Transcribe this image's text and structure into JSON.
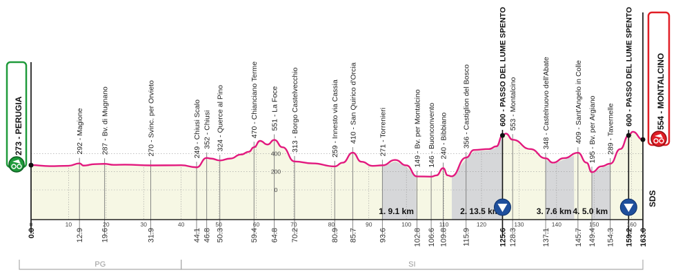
{
  "chart_data": {
    "type": "area",
    "title": "",
    "xlabel": "",
    "ylabel": "",
    "xlim": [
      0,
      163
    ],
    "x_ticks": [
      0,
      10,
      20,
      30,
      40,
      50,
      60,
      70,
      80,
      90,
      100,
      110,
      120,
      130,
      140,
      150,
      160
    ],
    "y_gridlines": [
      0,
      200,
      400
    ],
    "grid": true,
    "colors": {
      "profile": "#e2197e",
      "fill": "#f6f7e4",
      "gravel": "#d6d7d9",
      "start": "#1e9a3a",
      "finish": "#e11d25",
      "kom": "#1f4f9c"
    },
    "profile": {
      "km": [
        0,
        5,
        10,
        12.9,
        14,
        17,
        19.6,
        22,
        25,
        31.9,
        40,
        44.1,
        46.8,
        48,
        50.3,
        53,
        56,
        58,
        59.4,
        61,
        63,
        64.8,
        67,
        70.2,
        75,
        80.9,
        83,
        85.7,
        88,
        91,
        93.6,
        97,
        100,
        102.8,
        106.6,
        108,
        109.8,
        111,
        112,
        115.9,
        118,
        122,
        124,
        125.6,
        126.5,
        128.3,
        133,
        137.1,
        139,
        142,
        145.7,
        148,
        149.4,
        152,
        154.3,
        157,
        159.2,
        160.3,
        163
      ],
      "elevation_m": [
        273,
        262,
        266,
        292,
        268,
        284,
        287,
        276,
        278,
        270,
        272,
        249,
        352,
        345,
        324,
        345,
        390,
        420,
        470,
        540,
        500,
        551,
        470,
        313,
        292,
        259,
        300,
        410,
        310,
        265,
        271,
        330,
        270,
        149,
        146,
        160,
        240,
        160,
        150,
        356,
        440,
        450,
        480,
        600,
        620,
        553,
        450,
        348,
        300,
        350,
        409,
        300,
        195,
        260,
        289,
        450,
        600,
        640,
        554
      ]
    },
    "start": {
      "label": "273 - PERUGIA",
      "km": 0,
      "elevation_m": 273
    },
    "finish": {
      "label": "554 - MONTALCINO",
      "km": 163,
      "elevation_m": 554
    },
    "waypoints": [
      {
        "km": 12.9,
        "km_label": "12.9",
        "label": "292 - Magione",
        "bold": false
      },
      {
        "km": 19.6,
        "km_label": "19.6",
        "label": "287 - Bv. di Mugnano",
        "bold": false
      },
      {
        "km": 31.9,
        "km_label": "31.9",
        "label": "270 - Svinc. per Orvieto",
        "bold": false
      },
      {
        "km": 44.1,
        "km_label": "44.1",
        "label": "249 - Chiusi Scalo",
        "bold": false
      },
      {
        "km": 46.8,
        "km_label": "46.8",
        "label": "352 - Chiusi",
        "bold": false
      },
      {
        "km": 50.3,
        "km_label": "50.3",
        "label": "324 - Querce al Pino",
        "bold": false
      },
      {
        "km": 59.4,
        "km_label": "59.4",
        "label": "470 - Chianciano Terme",
        "bold": false
      },
      {
        "km": 64.8,
        "km_label": "64.8",
        "label": "551 - La Foce",
        "bold": false
      },
      {
        "km": 70.2,
        "km_label": "70.2",
        "label": "313 - Borgo Castelvecchio",
        "bold": false
      },
      {
        "km": 80.9,
        "km_label": "80.9",
        "label": "259 - Innesto via Cassia",
        "bold": false
      },
      {
        "km": 85.7,
        "km_label": "85.7",
        "label": "410 - San Quirico d'Orcia",
        "bold": false
      },
      {
        "km": 93.6,
        "km_label": "93.6",
        "label": "271 - Torrenieri",
        "bold": false
      },
      {
        "km": 102.8,
        "km_label": "102.8",
        "label": "149 - Bv. per Montalcino",
        "bold": false
      },
      {
        "km": 106.6,
        "km_label": "106.6",
        "label": "146 - Buonconvento",
        "bold": false
      },
      {
        "km": 109.8,
        "km_label": "109.8",
        "label": "240 - Bibbiano",
        "bold": false
      },
      {
        "km": 115.9,
        "km_label": "115.9",
        "label": "356 - Castiglion del Bosco",
        "bold": false
      },
      {
        "km": 125.6,
        "km_label": "125.6",
        "label": "600 - PASSO DEL LUME SPENTO",
        "bold": true
      },
      {
        "km": 128.3,
        "km_label": "128.3",
        "label": "553 - Montalcino",
        "bold": false
      },
      {
        "km": 137.1,
        "km_label": "137.1",
        "label": "348 - Castelnuovo dell'Abate",
        "bold": false
      },
      {
        "km": 145.7,
        "km_label": "145.7",
        "label": "409 - Sant'Angelo in Colle",
        "bold": false
      },
      {
        "km": 149.4,
        "km_label": "149.4",
        "label": "195 - Bv. per Argiano",
        "bold": false
      },
      {
        "km": 154.3,
        "km_label": "154.3",
        "label": "289 - Tavernelle",
        "bold": false
      },
      {
        "km": 159.2,
        "km_label": "159.2",
        "label": "600 - PASSO DEL LUME SPENTO",
        "bold": true
      }
    ],
    "start_km_label": "0.0",
    "finish_km_label": "163.0",
    "gravel_sectors": [
      {
        "label": "1. 9.1 km",
        "from_km": 93.6,
        "to_km": 102.7
      },
      {
        "label": "2. 13.5 km",
        "from_km": 112.1,
        "to_km": 125.6
      },
      {
        "label": "3. 7.6 km",
        "from_km": 137.1,
        "to_km": 144.7
      },
      {
        "label": "4. 5.0 km",
        "from_km": 149.4,
        "to_km": 154.4
      }
    ],
    "kom_km": [
      125.6,
      159.2
    ],
    "provinces": [
      {
        "label": "PG",
        "from_km": -3,
        "to_km": 40
      },
      {
        "label": "SI",
        "from_km": 40,
        "to_km": 163
      }
    ],
    "sds_label": "SDS"
  }
}
